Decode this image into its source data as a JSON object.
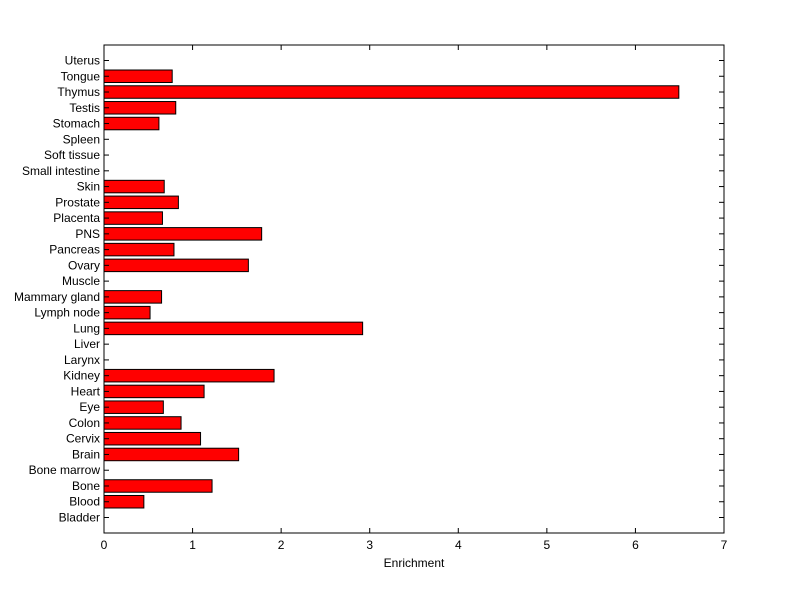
{
  "chart_data": {
    "type": "bar",
    "orientation": "horizontal",
    "title": "",
    "xlabel": "Enrichment",
    "ylabel": "",
    "xlim": [
      0,
      7
    ],
    "xticks": [
      "0",
      "1",
      "2",
      "3",
      "4",
      "5",
      "6",
      "7"
    ],
    "grid": false,
    "bar_color": "#ff0000",
    "bar_edge_color": "#000000",
    "categories": [
      "Uterus",
      "Tongue",
      "Thymus",
      "Testis",
      "Stomach",
      "Spleen",
      "Soft tissue",
      "Small intestine",
      "Skin",
      "Prostate",
      "Placenta",
      "PNS",
      "Pancreas",
      "Ovary",
      "Muscle",
      "Mammary gland",
      "Lymph node",
      "Lung",
      "Liver",
      "Larynx",
      "Kidney",
      "Heart",
      "Eye",
      "Colon",
      "Cervix",
      "Brain",
      "Bone marrow",
      "Bone",
      "Blood",
      "Bladder"
    ],
    "values": [
      0,
      0.77,
      6.49,
      0.81,
      0.62,
      0,
      0,
      0,
      0.68,
      0.84,
      0.66,
      1.78,
      0.79,
      1.63,
      0,
      0.65,
      0.52,
      2.92,
      0,
      0,
      1.92,
      1.13,
      0.67,
      0.87,
      1.09,
      1.52,
      0,
      1.22,
      0.45,
      0
    ]
  }
}
